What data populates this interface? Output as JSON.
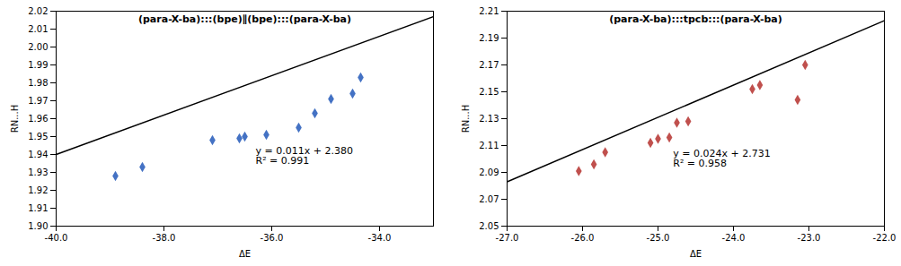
{
  "chart_data": [
    {
      "type": "scatter",
      "title": "(para-X-ba):::(bpe)∥(bpe):::(para-X-ba)",
      "xlabel": "ΔE",
      "ylabel": "RN...H",
      "xlim": [
        -40.0,
        -33.0
      ],
      "ylim": [
        1.9,
        2.02
      ],
      "xticks": [
        {
          "value": -40.0,
          "label": "-40.0"
        },
        {
          "value": -38.0,
          "label": "-38.0"
        },
        {
          "value": -36.0,
          "label": "-36.0"
        },
        {
          "value": -34.0,
          "label": "-34.0"
        }
      ],
      "yticks": [
        {
          "value": 1.9,
          "label": "1.90"
        },
        1.91,
        1.92,
        1.93,
        1.94,
        1.95,
        1.96,
        1.97,
        1.98,
        1.99,
        {
          "value": 2.0,
          "label": "2.00"
        },
        2.01,
        2.02
      ],
      "grid": false,
      "series": [
        {
          "type": "scatter",
          "color": "#4472C4",
          "marker": "diamond",
          "x": [
            -38.9,
            -38.4,
            -37.1,
            -36.6,
            -36.5,
            -36.1,
            -35.5,
            -35.2,
            -34.9,
            -34.5,
            -34.35
          ],
          "values": [
            1.928,
            1.933,
            1.948,
            1.949,
            1.95,
            1.951,
            1.955,
            1.963,
            1.971,
            1.974,
            1.983
          ]
        },
        {
          "type": "line",
          "color": "black",
          "line_style": "solid",
          "x": [
            -40.0,
            -33.0
          ],
          "values": [
            1.94,
            2.017
          ]
        }
      ],
      "annotations": [
        {
          "text": "y = 0.011x + 2.380\nR² = 0.991",
          "x": -36.3,
          "y": 1.944
        }
      ]
    },
    {
      "type": "scatter",
      "title": "(para-X-ba):::tpcb:::(para-X-ba)",
      "xlabel": "ΔE",
      "ylabel": "RN...H",
      "xlim": [
        -27.0,
        -22.0
      ],
      "ylim": [
        2.05,
        2.21
      ],
      "xticks": [
        {
          "value": -27.0,
          "label": "-27.0"
        },
        {
          "value": -26.0,
          "label": "-26.0"
        },
        {
          "value": -25.0,
          "label": "-25.0"
        },
        {
          "value": -24.0,
          "label": "-24.0"
        },
        {
          "value": -23.0,
          "label": "-23.0"
        },
        {
          "value": -22.0,
          "label": "-22.0"
        }
      ],
      "yticks": [
        2.05,
        2.07,
        2.09,
        2.11,
        2.13,
        2.15,
        2.17,
        2.19,
        2.21
      ],
      "grid": false,
      "series": [
        {
          "type": "scatter",
          "color": "#C0504D",
          "marker": "diamond",
          "x": [
            -26.05,
            -25.85,
            -25.7,
            -25.1,
            -25.0,
            -24.85,
            -24.75,
            -24.6,
            -23.75,
            -23.65,
            -23.15,
            -23.05
          ],
          "values": [
            2.091,
            2.096,
            2.105,
            2.112,
            2.115,
            2.116,
            2.127,
            2.128,
            2.152,
            2.155,
            2.144,
            2.17
          ]
        },
        {
          "type": "line",
          "color": "black",
          "line_style": "solid",
          "x": [
            -27.0,
            -22.0
          ],
          "values": [
            2.083,
            2.203
          ]
        }
      ],
      "annotations": [
        {
          "text": "y = 0.024x + 2.731\nR² = 0.958",
          "x": -24.8,
          "y": 2.107
        }
      ]
    }
  ]
}
